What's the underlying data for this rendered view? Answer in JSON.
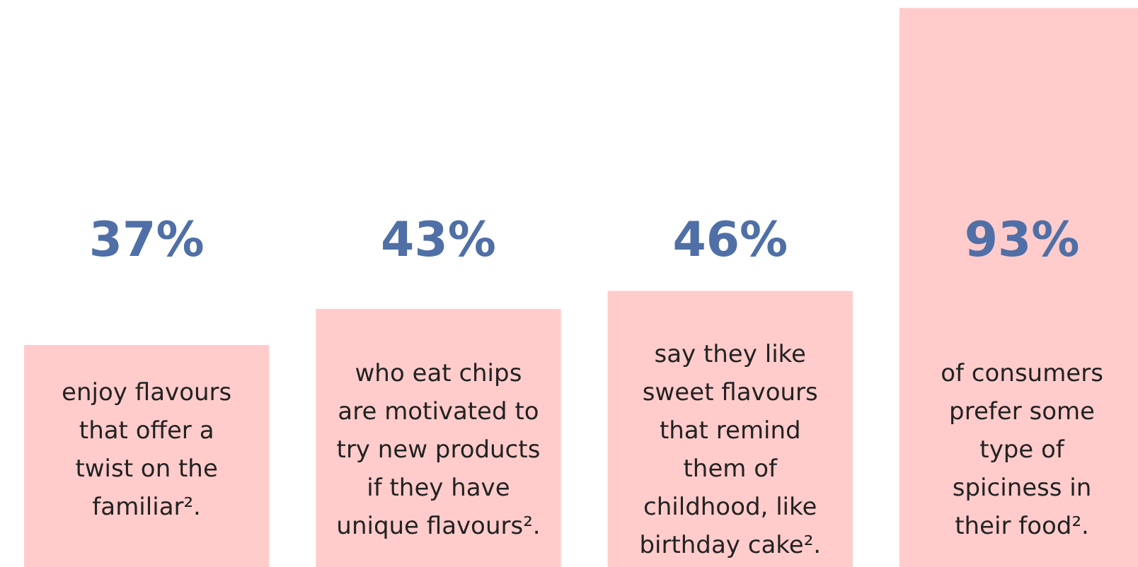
{
  "chart_data": {
    "type": "bar",
    "categories": [
      "enjoy flavours\nthat offer a\ntwist on the\nfamiliar².",
      "who eat chips\nare motivated to\ntry new products\nif they have\nunique flavours².",
      "say they like\nsweet flavours\nthat remind\nthem of\nchildhood, like\nbirthday cake².",
      "of consumers\nprefer some\ntype of\nspiciness in\ntheir food²."
    ],
    "values": [
      37,
      43,
      46,
      93
    ],
    "value_labels": [
      "37%",
      "43%",
      "46%",
      "93%"
    ],
    "color": "#ffcccb"
  }
}
